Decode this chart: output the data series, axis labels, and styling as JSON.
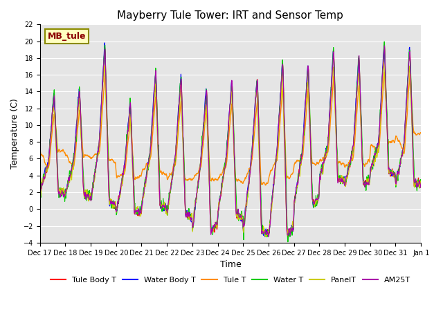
{
  "title": "Mayberry Tule Tower: IRT and Sensor Temp",
  "xlabel": "Time",
  "ylabel": "Temperature (C)",
  "ylim": [
    -4,
    22
  ],
  "yticks": [
    -4,
    -2,
    0,
    2,
    4,
    6,
    8,
    10,
    12,
    14,
    16,
    18,
    20,
    22
  ],
  "annotation": "MB_tule",
  "legend": [
    "Tule Body T",
    "Water Body T",
    "Tule T",
    "Water T",
    "PanelT",
    "AM25T"
  ],
  "colors": {
    "Tule Body T": "#FF0000",
    "Water Body T": "#0000FF",
    "Tule T": "#FF8C00",
    "Water T": "#00CC00",
    "PanelT": "#CCCC00",
    "AM25T": "#AA00AA"
  },
  "x_tick_labels": [
    "Dec 17",
    "Dec 18",
    "Dec 19",
    "Dec 20",
    "Dec 21",
    "Dec 22",
    "Dec 23",
    "Dec 24",
    "Dec 25",
    "Dec 26",
    "Dec 27",
    "Dec 28",
    "Dec 29",
    "Dec 30",
    "Dec 31",
    "Jan 1"
  ],
  "peak_heights": [
    14.0,
    14.5,
    19.8,
    13.0,
    16.5,
    16.0,
    14.5,
    15.5,
    16.0,
    17.8,
    17.5,
    19.2,
    18.3,
    20.0,
    19.5
  ],
  "trough_values": [
    2.0,
    1.8,
    1.0,
    -0.5,
    0.5,
    -0.5,
    -2.5,
    -0.5,
    -2.8,
    -3.2,
    0.5,
    3.5,
    3.0,
    4.5,
    3.0
  ],
  "orange_base": [
    7.0,
    6.5,
    6.0,
    3.8,
    4.5,
    3.5,
    3.5,
    3.5,
    3.0,
    3.8,
    5.5,
    5.5,
    5.0,
    8.0,
    9.0
  ],
  "n_days": 15,
  "plot_bg": "#E5E5E5"
}
